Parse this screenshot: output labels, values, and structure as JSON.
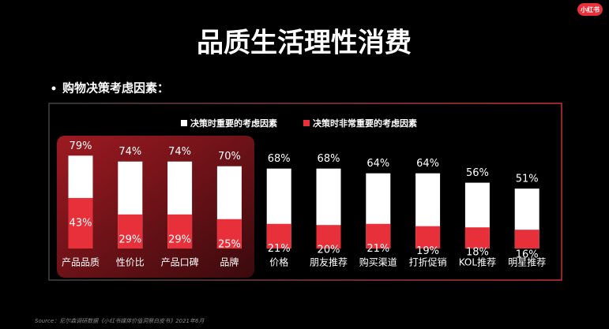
{
  "logo": "小红书",
  "title": "品质生活理性消费",
  "subtitle": "购物决策考虑因素：",
  "source": "Source：尼尔森调研数据《小红书媒体价值洞察白皮书》2021年6月",
  "chart_data": {
    "type": "bar",
    "categories": [
      "产品品质",
      "性价比",
      "产品口碑",
      "品牌",
      "价格",
      "朋友推荐",
      "购买渠道",
      "打折促销",
      "KOL推荐",
      "明星推荐"
    ],
    "series": [
      {
        "name": "决策时重要的考虑因素",
        "color": "#ffffff",
        "values": [
          79,
          74,
          74,
          70,
          68,
          68,
          64,
          64,
          56,
          51
        ],
        "value_labels": [
          "79%",
          "74%",
          "74%",
          "70%",
          "68%",
          "68%",
          "64%",
          "64%",
          "56%",
          "51%"
        ]
      },
      {
        "name": "决策时非常重要的考虑因素",
        "color": "#e8303a",
        "values": [
          43,
          29,
          29,
          25,
          21,
          20,
          21,
          19,
          18,
          16
        ],
        "value_labels": [
          "43%",
          "29%",
          "29%",
          "25%",
          "21%",
          "20%",
          "21%",
          "19%",
          "18%",
          "16%"
        ]
      }
    ]
  }
}
